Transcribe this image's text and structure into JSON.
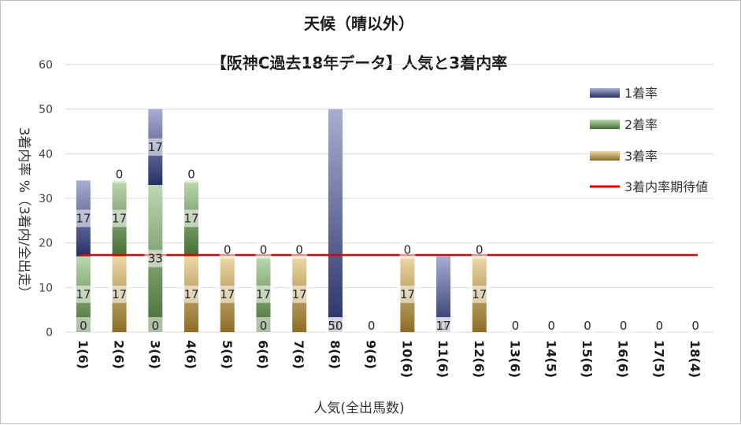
{
  "chart_data": {
    "type": "bar",
    "stacked": true,
    "title": "天候（晴以外）",
    "subtitle": "【阪神C過去18年データ】人気と3着内率",
    "xlabel": "人気(全出馬数)",
    "ylabel": "3着内率 %（3着内/全出走）",
    "ylim": [
      0,
      60
    ],
    "yticks": [
      0,
      10,
      20,
      30,
      40,
      50,
      60
    ],
    "grid": true,
    "legend_position": "right",
    "categories": [
      "1(6)",
      "2(6)",
      "3(6)",
      "4(6)",
      "5(6)",
      "6(6)",
      "7(6)",
      "8(6)",
      "9(6)",
      "10(6)",
      "11(6)",
      "12(6)",
      "13(6)",
      "14(5)",
      "15(6)",
      "16(6)",
      "17(5)",
      "18(4)"
    ],
    "series": [
      {
        "name": "3着率",
        "color": "#d7a83a",
        "values": [
          0,
          17,
          0,
          17,
          17,
          0,
          17,
          0,
          0,
          17,
          0,
          17,
          0,
          0,
          0,
          0,
          0,
          0
        ]
      },
      {
        "name": "2着率",
        "color": "#6aa84f",
        "values": [
          17,
          17,
          33,
          17,
          0,
          17,
          0,
          0,
          0,
          0,
          0,
          0,
          0,
          0,
          0,
          0,
          0,
          0
        ]
      },
      {
        "name": "1着率",
        "color": "#3c4a9c",
        "values": [
          17,
          0,
          17,
          0,
          0,
          0,
          0,
          50,
          0,
          0,
          17,
          0,
          0,
          0,
          0,
          0,
          0,
          0
        ]
      }
    ],
    "expected_line": {
      "name": "3着内率期待値",
      "value": 17.3,
      "color": "#e00000"
    },
    "data_labels": [
      [
        "0",
        "17",
        "17"
      ],
      [
        "17",
        "17",
        "0"
      ],
      [
        "0",
        "33",
        "17"
      ],
      [
        "17",
        "17",
        "0"
      ],
      [
        "17",
        "0",
        ""
      ],
      [
        "0",
        "17",
        "0"
      ],
      [
        "17",
        "0",
        ""
      ],
      [
        "0",
        "50",
        ""
      ],
      [
        "0",
        "",
        ""
      ],
      [
        "17",
        "0",
        ""
      ],
      [
        "0",
        "17",
        ""
      ],
      [
        "17",
        "0",
        ""
      ],
      [
        "0",
        "",
        ""
      ],
      [
        "0",
        "",
        ""
      ],
      [
        "0",
        "",
        ""
      ],
      [
        "0",
        "",
        ""
      ],
      [
        "0",
        "",
        ""
      ],
      [
        "0",
        "",
        ""
      ]
    ],
    "legend": [
      "1着率",
      "2着率",
      "3着率",
      "3着内率期待値"
    ]
  }
}
